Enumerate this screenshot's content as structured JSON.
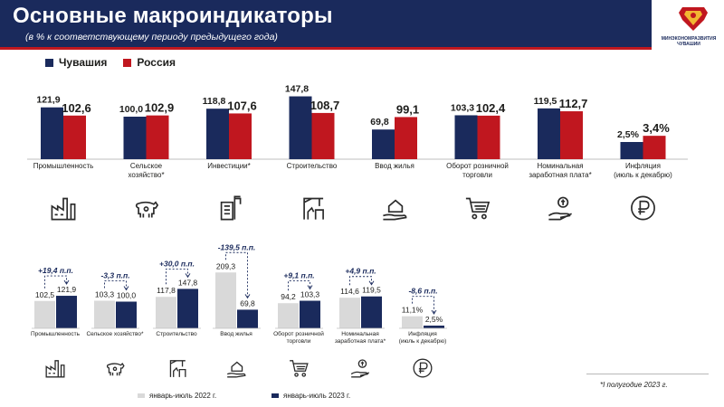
{
  "header": {
    "title": "Основные макроиндикаторы",
    "subtitle": "(в % к соответствующему периоду предыдущего года)",
    "logo_text": "МИНЭКОНОМРАЗВИТИЯ ЧУВАШИИ"
  },
  "colors": {
    "chuvashia": "#1a2a5c",
    "russia": "#c0171f",
    "prev": "#d9d9d9",
    "curr": "#1a2a5c",
    "header": "#1a2a5c"
  },
  "icons": [
    "factory-icon",
    "cow-icon",
    "crane-building-icon",
    "construction-crane-icon",
    "house-in-hand-icon",
    "shopping-cart-icon",
    "money-hand-icon",
    "ruble-coin-icon"
  ],
  "chart_data": [
    {
      "type": "bar",
      "series": [
        {
          "name": "Чувашия",
          "labels": [
            "121,9",
            "100,0",
            "118,8",
            "147,8",
            "69,8",
            "103,3",
            "119,5",
            "2,5%"
          ],
          "values": [
            121.9,
            100.0,
            118.8,
            147.8,
            69.8,
            103.3,
            119.5,
            2.5
          ]
        },
        {
          "name": "Россия",
          "labels": [
            "102,6",
            "102,9",
            "107,6",
            "108,7",
            "99,1",
            "102,4",
            "112,7",
            "3,4%"
          ],
          "values": [
            102.6,
            102.9,
            107.6,
            108.7,
            99.1,
            102.4,
            112.7,
            3.4
          ]
        }
      ],
      "categories": [
        "Промышленность",
        "Сельское хозяйство*",
        "Инвестиции*",
        "Строительство",
        "Ввод жилья",
        "Оборот розничной торговли",
        "Номинальная заработная плата*",
        "Инфляция (июль к декабрю)"
      ],
      "category_lines": [
        [
          "Промышленность"
        ],
        [
          "Сельское",
          "хозяйство*"
        ],
        [
          "Инвестиции*"
        ],
        [
          "Строительство"
        ],
        [
          "Ввод жилья"
        ],
        [
          "Оборот розничной",
          "торговли"
        ],
        [
          "Номинальная",
          "заработная плата*"
        ],
        [
          "Инфляция",
          "(июль к декабрю)"
        ]
      ]
    },
    {
      "type": "bar",
      "series": [
        {
          "name": "январь-июль 2022 г.",
          "labels": [
            "102,5",
            "103,3",
            "117,8",
            "209,3",
            "94,2",
            "114,6",
            "11,1%"
          ],
          "values": [
            102.5,
            103.3,
            117.8,
            209.3,
            94.2,
            114.6,
            11.1
          ]
        },
        {
          "name": "январь-июль 2023 г.",
          "labels": [
            "121,9",
            "100,0",
            "147,8",
            "69,8",
            "103,3",
            "119,5",
            "2,5%"
          ],
          "values": [
            121.9,
            100.0,
            147.8,
            69.8,
            103.3,
            119.5,
            2.5
          ]
        }
      ],
      "changes": [
        "+19,4 п.п.",
        "-3,3 п.п.",
        "+30,0 п.п.",
        "-139,5 п.п.",
        "+9,1 п.п.",
        "+4,9 п.п.",
        "-8,6 п.п."
      ],
      "categories": [
        "Промышленность",
        "Сельское хозяйство*",
        "Строительство",
        "Ввод жилья",
        "Оборот розничной торговли",
        "Номинальная заработная плата*",
        "Инфляция (июль к декабрю)"
      ],
      "category_lines": [
        [
          "Промышленность"
        ],
        [
          "Сельское хозяйство*"
        ],
        [
          "Строительство"
        ],
        [
          "Ввод жилья"
        ],
        [
          "Оборот розничной",
          "торговли"
        ],
        [
          "Номинальная",
          "заработная плата*"
        ],
        [
          "Инфляция",
          "(июль к декабрю)"
        ]
      ]
    }
  ],
  "footnote": "*I полугодие 2023 г."
}
